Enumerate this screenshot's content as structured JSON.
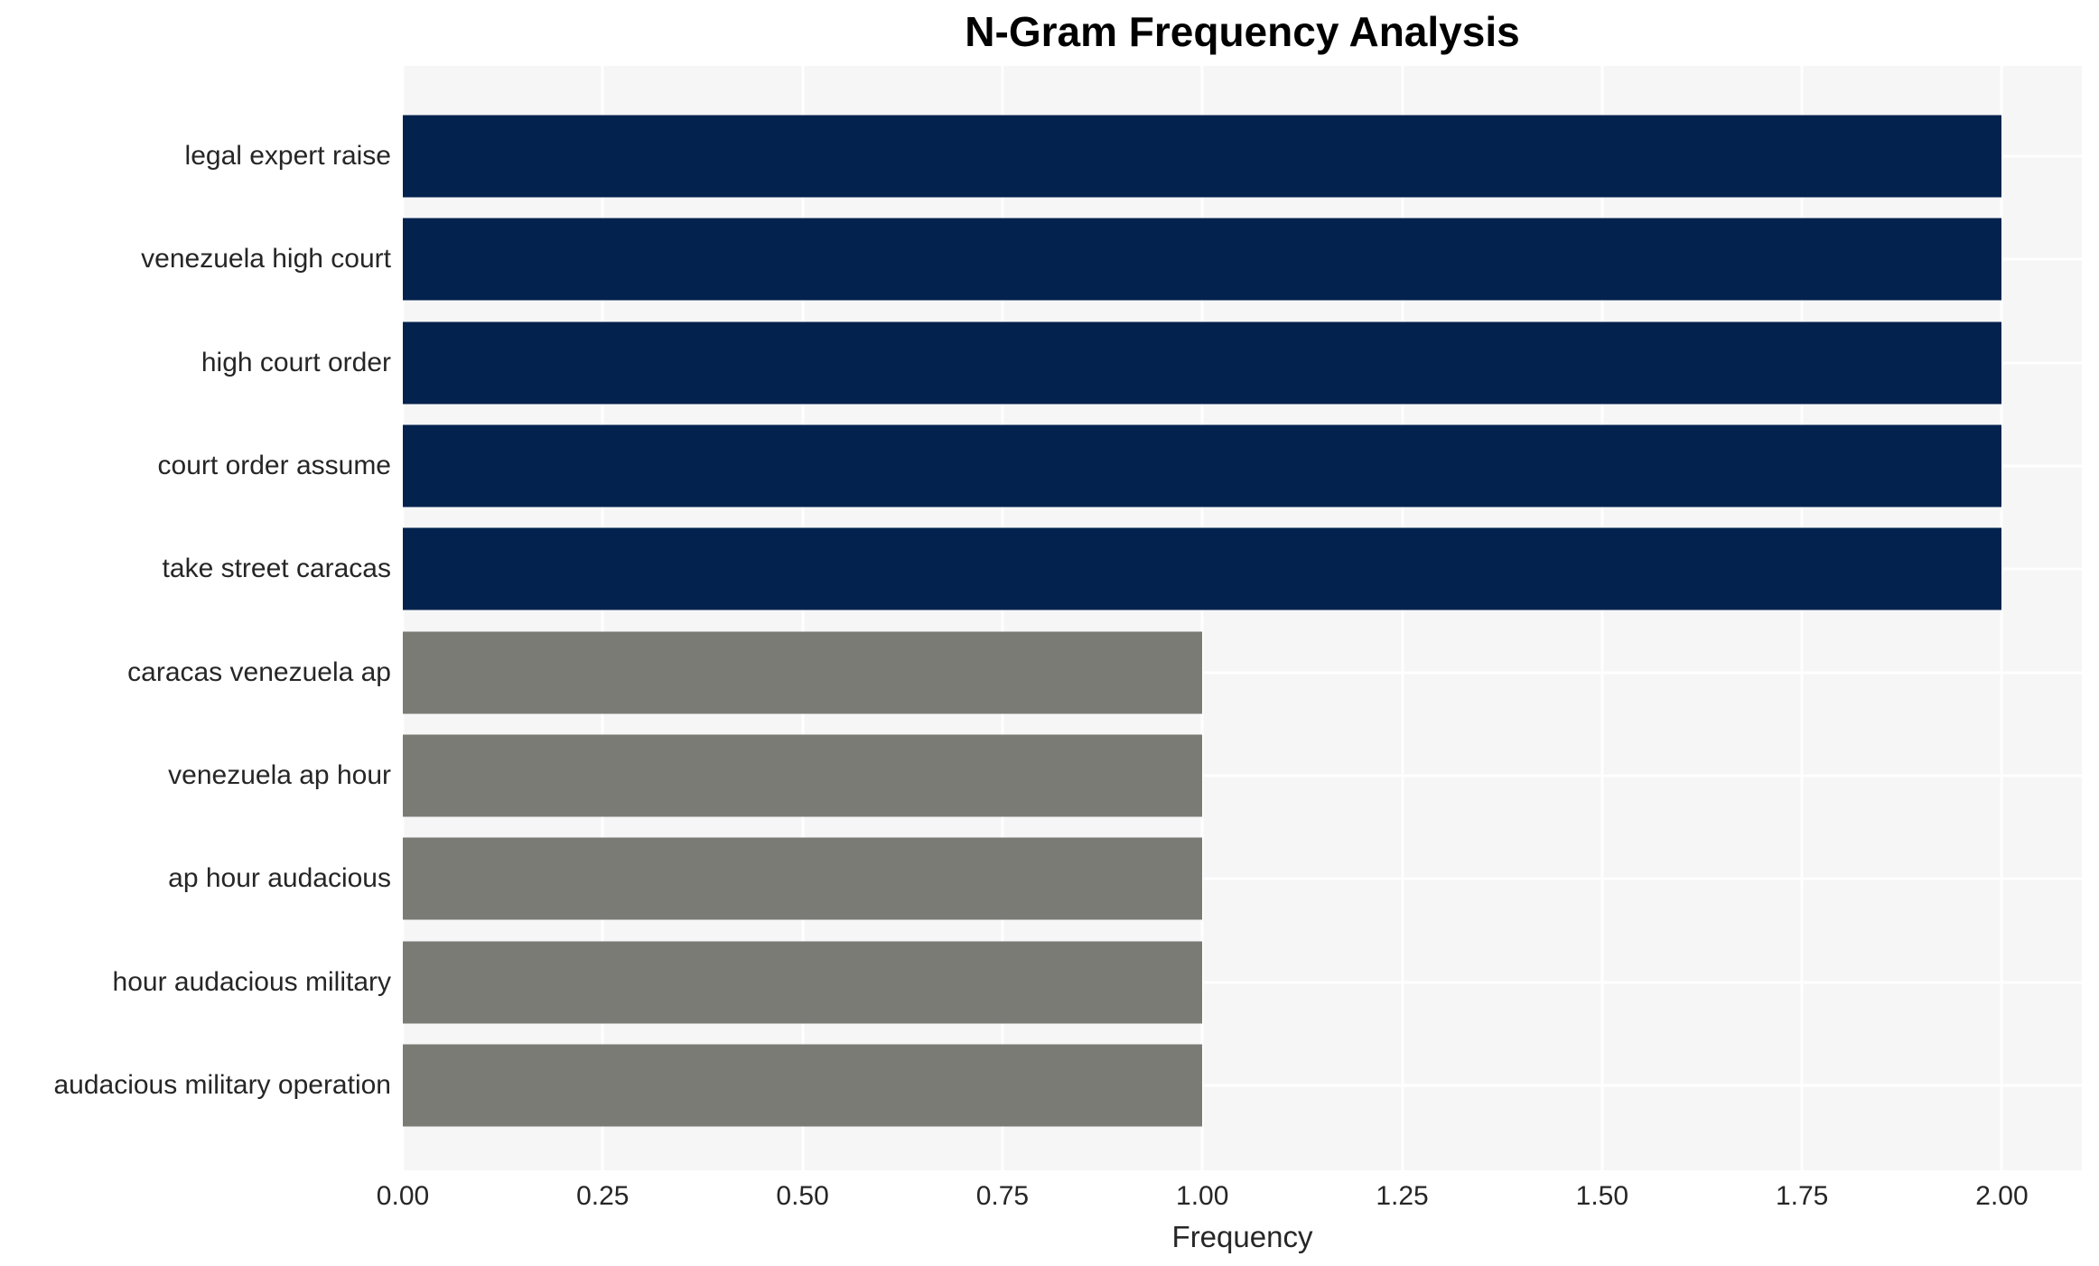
{
  "chart_data": {
    "type": "bar",
    "orientation": "horizontal",
    "title": "N-Gram Frequency Analysis",
    "xlabel": "Frequency",
    "ylabel": "",
    "categories": [
      "legal expert raise",
      "venezuela high court",
      "high court order",
      "court order assume",
      "take street caracas",
      "caracas venezuela ap",
      "venezuela ap hour",
      "ap hour audacious",
      "hour audacious military",
      "audacious military operation"
    ],
    "values": [
      2,
      2,
      2,
      2,
      2,
      1,
      1,
      1,
      1,
      1
    ],
    "bar_colors": [
      "#03224d",
      "#03224d",
      "#03224d",
      "#03224d",
      "#03224d",
      "#7b7b76",
      "#7b7b76",
      "#7b7b76",
      "#7b7b76",
      "#7b7b76"
    ],
    "xlim": [
      0,
      2.1
    ],
    "xticks": {
      "values": [
        0,
        0.25,
        0.5,
        0.75,
        1.0,
        1.25,
        1.5,
        1.75,
        2.0
      ],
      "labels": [
        "0.00",
        "0.25",
        "0.50",
        "0.75",
        "1.00",
        "1.25",
        "1.50",
        "1.75",
        "2.00"
      ]
    },
    "grid": true,
    "legend_position": "none",
    "colors": {
      "high_frequency_bar": "#03224d",
      "low_frequency_bar": "#7b7b76",
      "plot_background": "#f6f6f7",
      "figure_background": "#ffffff",
      "gridline": "#ffffff",
      "text": "#262626",
      "title_text": "#000000"
    }
  }
}
